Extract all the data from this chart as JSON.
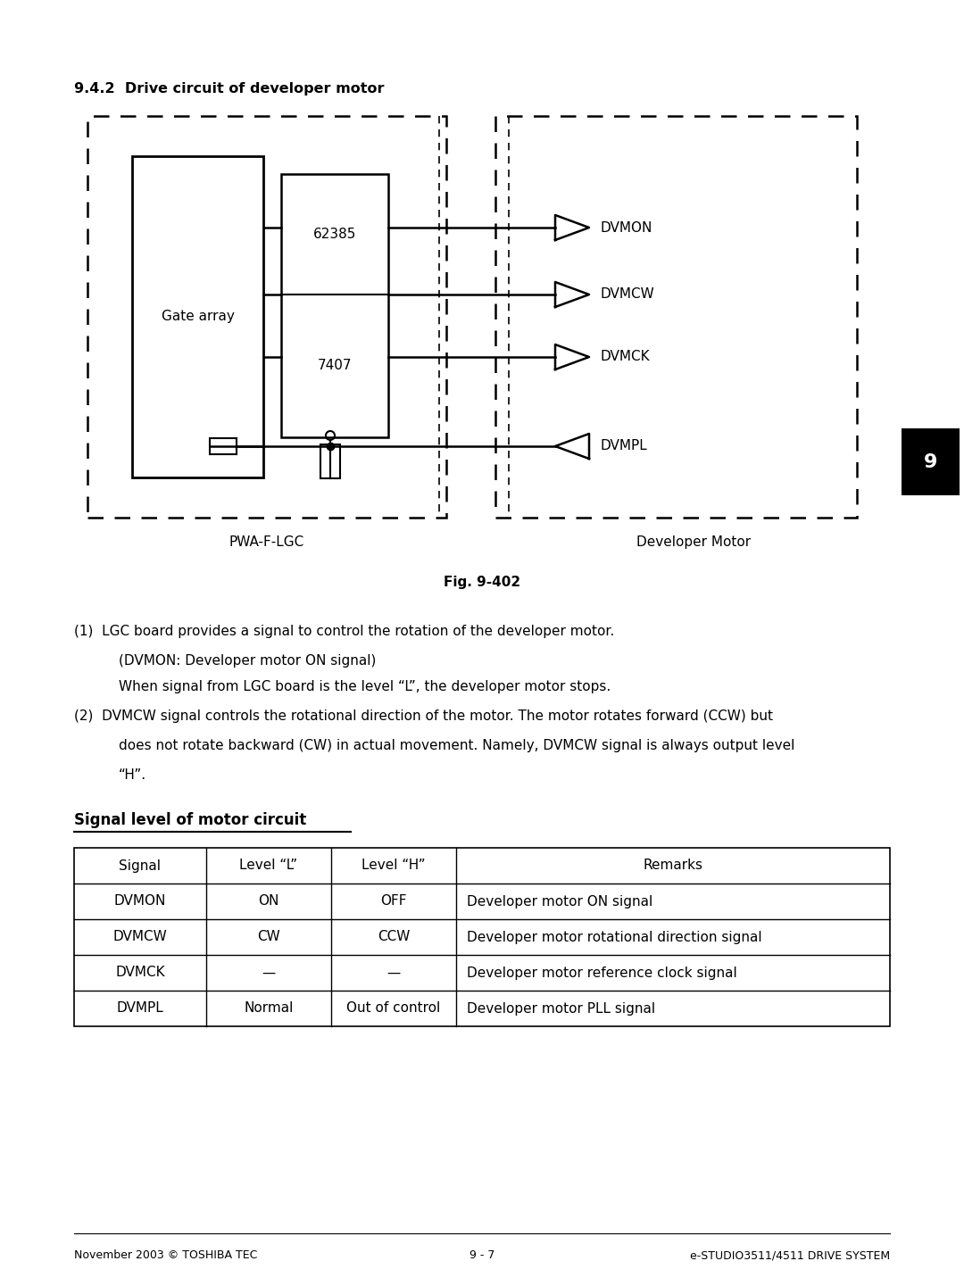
{
  "title": "9.4.2  Drive circuit of developer motor",
  "fig_label": "Fig. 9-402",
  "left_box_label": "Gate array",
  "left_dashed_label": "PWA-F-LGC",
  "right_dashed_label": "Developer Motor",
  "ic1_label": "62385",
  "ic2_label": "7407",
  "table_title": "Signal level of motor circuit",
  "table_headers": [
    "Signal",
    "Level “L”",
    "Level “H”",
    "Remarks"
  ],
  "table_rows": [
    [
      "DVMON",
      "ON",
      "OFF",
      "Developer motor ON signal"
    ],
    [
      "DVMCW",
      "CW",
      "CCW",
      "Developer motor rotational direction signal"
    ],
    [
      "DVMCK",
      "—",
      "—",
      "Developer motor reference clock signal"
    ],
    [
      "DVMPL",
      "Normal",
      "Out of control",
      "Developer motor PLL signal"
    ]
  ],
  "footer_left": "November 2003 © TOSHIBA TEC",
  "footer_center": "9 - 7",
  "footer_right": "e-STUDIO3511/4511 DRIVE SYSTEM",
  "bg_color": "#ffffff",
  "text_color": "#000000",
  "tab_num": "9"
}
